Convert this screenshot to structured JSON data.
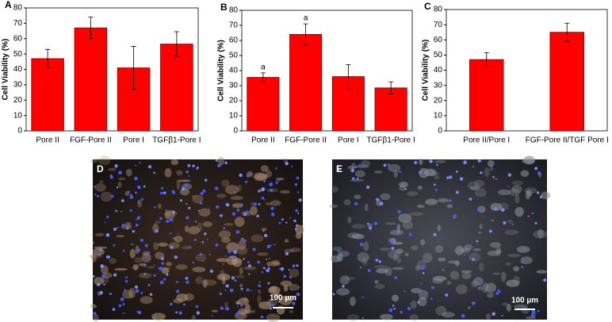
{
  "chart_data": [
    {
      "type": "bar",
      "panel": "A",
      "y_label": "Cell Viability (%)",
      "categories": [
        "Pore II",
        "FGF-Pore II",
        "Pore I",
        "TGFβ1-Pore I"
      ],
      "values": [
        47,
        67,
        41,
        56.5
      ],
      "errors": [
        6,
        7,
        14,
        8
      ],
      "color": "#ff0000",
      "ylim": [
        0,
        80
      ],
      "yticks": [
        0,
        10,
        20,
        30,
        40,
        50,
        60,
        70,
        80
      ]
    },
    {
      "type": "bar",
      "panel": "B",
      "y_label": "Cell Viability (%)",
      "categories": [
        "Pore II",
        "FGF-Pore II",
        "Pore I",
        "TGFβ1-Pore I"
      ],
      "values": [
        35.5,
        64,
        36,
        28.5
      ],
      "errors": [
        3,
        7,
        8,
        4
      ],
      "annotations": [
        {
          "text": "a",
          "x": "Pore II"
        },
        {
          "text": "a",
          "x": "FGF-Pore II"
        }
      ],
      "color": "#ff0000",
      "ylim": [
        0,
        80
      ],
      "yticks": [
        0,
        10,
        20,
        30,
        40,
        50,
        60,
        70,
        80
      ]
    },
    {
      "type": "bar",
      "panel": "C",
      "y_label": "Cell Viability (%)",
      "categories": [
        "Pore II/Pore I",
        "FGF-Pore II/TGF Pore I"
      ],
      "values": [
        47,
        65
      ],
      "errors": [
        4.5,
        6
      ],
      "color": "#ff0000",
      "ylim": [
        0,
        80
      ],
      "yticks": [
        0,
        10,
        20,
        30,
        40,
        50,
        60,
        70,
        80
      ]
    }
  ],
  "images": [
    {
      "panel": "D",
      "scale_bar": "100 µm"
    },
    {
      "panel": "E",
      "scale_bar": "100 µm"
    }
  ]
}
